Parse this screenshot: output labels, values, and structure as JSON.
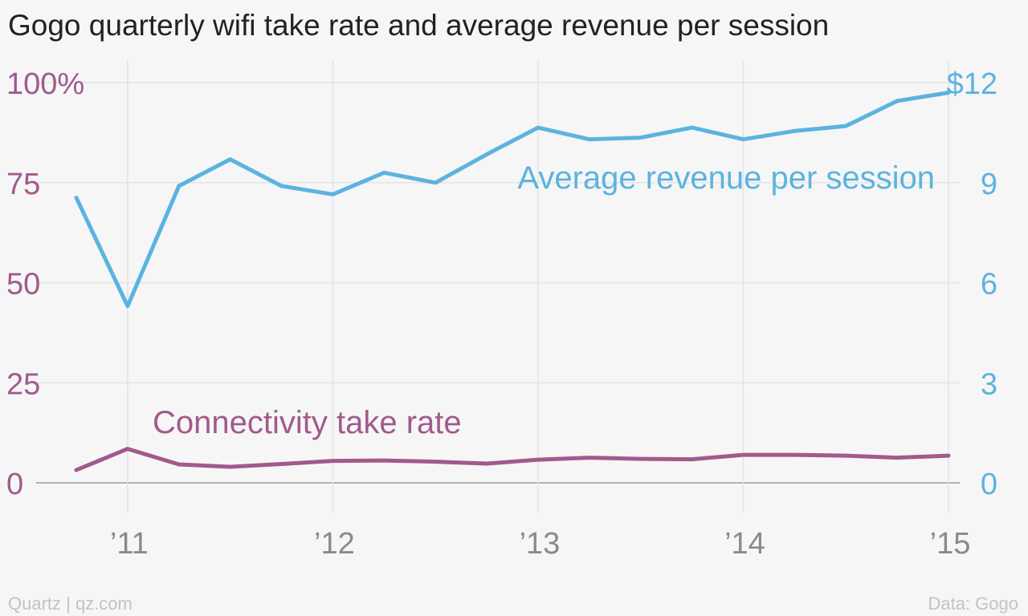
{
  "chart_data": {
    "type": "line",
    "title": "Gogo quarterly wifi take rate and average revenue per session",
    "x_axis": {
      "ticks": [
        "’11",
        "’12",
        "’13",
        "’14",
        "’15"
      ],
      "range": [
        2010.75,
        2015.0
      ]
    },
    "y_left": {
      "ticks": [
        "100%",
        "75",
        "50",
        "25",
        "0"
      ],
      "tick_values": [
        100,
        75,
        50,
        25,
        0
      ],
      "range": [
        0,
        100
      ],
      "color": "#a15a8c"
    },
    "y_right": {
      "ticks": [
        "$12",
        "9",
        "6",
        "3",
        "0"
      ],
      "tick_values": [
        12,
        9,
        6,
        3,
        0
      ],
      "range": [
        0,
        12
      ],
      "color": "#5cb3e0"
    },
    "series": [
      {
        "name": "Average revenue per session",
        "axis": "right",
        "color": "#5cb3e0",
        "x": [
          2010.75,
          2011.0,
          2011.25,
          2011.5,
          2011.75,
          2012.0,
          2012.25,
          2012.5,
          2012.75,
          2013.0,
          2013.25,
          2013.5,
          2013.75,
          2014.0,
          2014.25,
          2014.5,
          2014.75,
          2015.0
        ],
        "values": [
          8.55,
          5.3,
          8.9,
          9.7,
          8.9,
          8.65,
          9.3,
          9.0,
          9.85,
          10.65,
          10.3,
          10.35,
          10.65,
          10.3,
          10.55,
          10.7,
          11.45,
          11.7
        ]
      },
      {
        "name": "Connectivity take rate",
        "axis": "left",
        "color": "#a15a8c",
        "x": [
          2010.75,
          2011.0,
          2011.25,
          2011.5,
          2011.75,
          2012.0,
          2012.25,
          2012.5,
          2012.75,
          2013.0,
          2013.25,
          2013.5,
          2013.75,
          2014.0,
          2014.25,
          2014.5,
          2014.75,
          2015.0
        ],
        "values": [
          3.2,
          8.5,
          4.6,
          4.0,
          4.7,
          5.5,
          5.6,
          5.3,
          4.8,
          5.8,
          6.3,
          6.0,
          5.9,
          7.0,
          7.0,
          6.8,
          6.3,
          6.8
        ]
      }
    ],
    "grid": true,
    "legend": "direct labels"
  },
  "footer": {
    "credit": "Quartz | qz.com",
    "source": "Data: Gogo"
  }
}
